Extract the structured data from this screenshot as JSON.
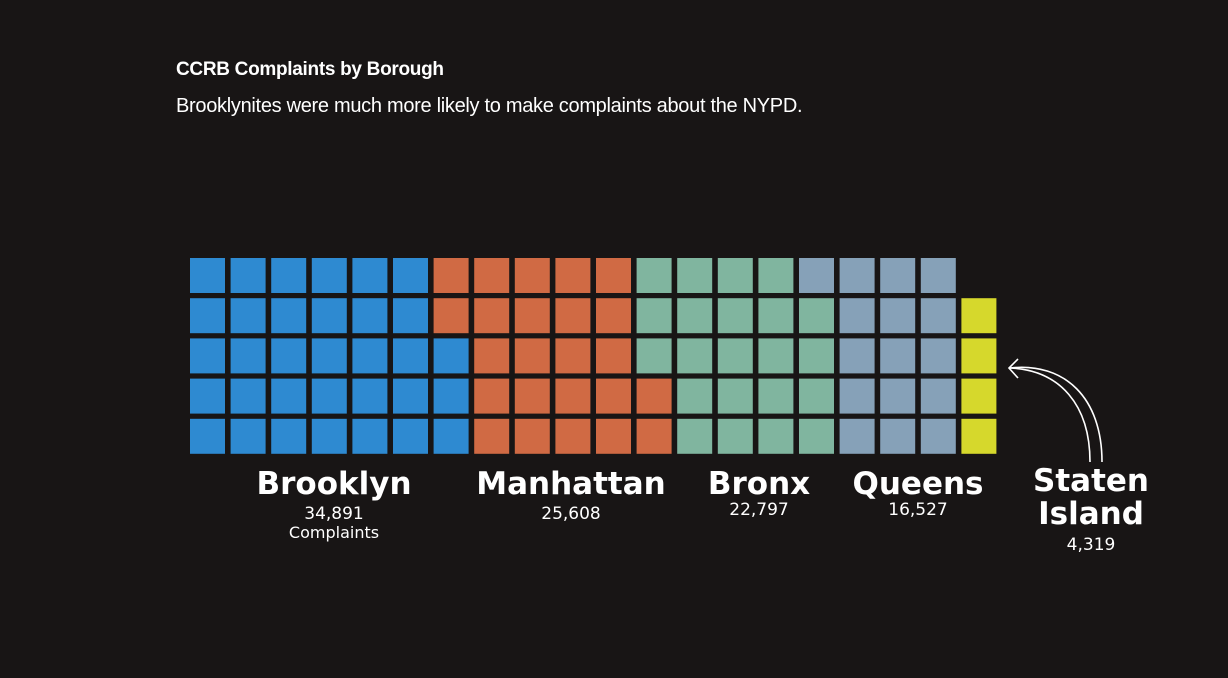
{
  "header": {
    "title": "CCRB Complaints by Borough",
    "subtitle": "Brooklynites were much more likely to make complaints about the NYPD."
  },
  "chart_data": {
    "type": "waffle",
    "title": "CCRB Complaints by Borough",
    "subtitle": "Brooklynites were much more likely to make complaints about the NYPD.",
    "unit_label": "Complaints",
    "grid": {
      "rows": 5,
      "columns": 20,
      "fill_order": "column-major"
    },
    "series": [
      {
        "name": "Brooklyn",
        "value": 34891,
        "label": "34,891",
        "squares": 33,
        "color": "#2e8ad1"
      },
      {
        "name": "Manhattan",
        "value": 25608,
        "label": "25,608",
        "squares": 24,
        "color": "#d06a44"
      },
      {
        "name": "Bronx",
        "value": 22797,
        "label": "22,797",
        "squares": 22,
        "color": "#80b59f"
      },
      {
        "name": "Queens",
        "value": 16527,
        "label": "16,527",
        "squares": 16,
        "color": "#86a1b8"
      },
      {
        "name": "Staten Island",
        "name_lines": [
          "Staten",
          "Island"
        ],
        "value": 4319,
        "label": "4,319",
        "squares": 4,
        "color": "#d6d82c"
      }
    ]
  }
}
